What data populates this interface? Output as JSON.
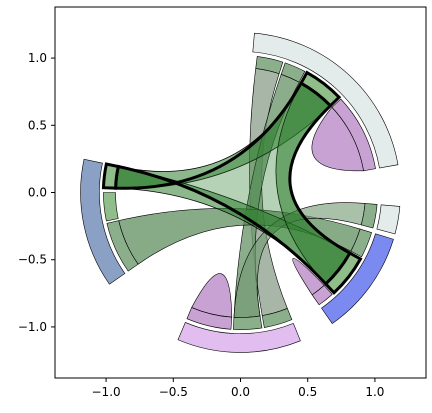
{
  "chart_data": {
    "type": "chord",
    "title": "",
    "xlabel": "",
    "ylabel": "",
    "xlim": [
      -1.38,
      1.38
    ],
    "ylim": [
      -1.38,
      1.38
    ],
    "grid": false,
    "x_ticks": [
      -1.0,
      -0.5,
      0.0,
      0.5,
      1.0
    ],
    "y_ticks": [
      1.0,
      0.5,
      0.0,
      -0.5,
      -1.0
    ],
    "x_tick_labels": [
      "−1.0",
      "−0.5",
      "0.0",
      "0.5",
      "1.0"
    ],
    "y_tick_labels": [
      "1.0",
      "0.5",
      "0.0",
      "−0.5",
      "−1.0"
    ],
    "inner_radius": 0.93,
    "inner_width": 0.09,
    "outer_radius": 1.05,
    "outer_width": 0.14,
    "nodes": [
      {
        "id": "A",
        "start_deg": 10,
        "end_deg": 85,
        "color": "#e3ecea"
      },
      {
        "id": "B",
        "start_deg": -15,
        "end_deg": -5,
        "color": "#e3ecea"
      },
      {
        "id": "C",
        "start_deg": -55,
        "end_deg": -17,
        "color": "#7b8af0"
      },
      {
        "id": "D",
        "start_deg": -113,
        "end_deg": -68,
        "color": "#e2bdf0"
      },
      {
        "id": "E",
        "start_deg": 168,
        "end_deg": 215,
        "color": "#8aa0c4"
      }
    ],
    "segments": [
      {
        "node": "A",
        "start_deg": 72,
        "end_deg": 83,
        "color": "#8aaf8a",
        "highlight": false
      },
      {
        "node": "A",
        "start_deg": 62,
        "end_deg": 71,
        "color": "#8aaf8a",
        "highlight": false
      },
      {
        "node": "A",
        "start_deg": 44,
        "end_deg": 61,
        "color": "#8fbe8b",
        "highlight": true
      },
      {
        "node": "A",
        "start_deg": 10,
        "end_deg": 43,
        "color": "#c9a2d4",
        "highlight": false
      },
      {
        "node": "B",
        "start_deg": -15,
        "end_deg": -5,
        "color": "#8aaf8a",
        "highlight": false
      },
      {
        "node": "C",
        "start_deg": -28,
        "end_deg": -17,
        "color": "#8aaf8a",
        "highlight": false
      },
      {
        "node": "C",
        "start_deg": -47,
        "end_deg": -29,
        "color": "#8fbe8b",
        "highlight": true
      },
      {
        "node": "C",
        "start_deg": -55,
        "end_deg": -48,
        "color": "#c9a2d4",
        "highlight": false
      },
      {
        "node": "D",
        "start_deg": -80,
        "end_deg": -68,
        "color": "#8aaf8a",
        "highlight": false
      },
      {
        "node": "D",
        "start_deg": -93,
        "end_deg": -81,
        "color": "#8aaf8a",
        "highlight": false
      },
      {
        "node": "D",
        "start_deg": -113,
        "end_deg": -94,
        "color": "#c9a2d4",
        "highlight": false
      },
      {
        "node": "E",
        "start_deg": 168,
        "end_deg": 178,
        "color": "#8fbe8b",
        "highlight": true
      },
      {
        "node": "E",
        "start_deg": 180,
        "end_deg": 192,
        "color": "#8fbe8b",
        "highlight": false
      },
      {
        "node": "E",
        "start_deg": 193,
        "end_deg": 215,
        "color": "#8aaf8a",
        "highlight": false
      }
    ],
    "chords": [
      {
        "from": [
          72,
          83
        ],
        "to": [
          -80,
          -68
        ],
        "color": "#8a9e8a",
        "opacity": 0.75,
        "highlight": false
      },
      {
        "from": [
          62,
          71
        ],
        "to": [
          -93,
          -81
        ],
        "color": "#6f986f",
        "opacity": 0.8,
        "highlight": false
      },
      {
        "from": [
          -28,
          -17
        ],
        "to": [
          193,
          215
        ],
        "color": "#5f8f5f",
        "opacity": 0.75,
        "highlight": false
      },
      {
        "from": [
          -15,
          -5
        ],
        "to": [
          -93,
          -81
        ],
        "color": "#6f986f",
        "opacity": 0.6,
        "highlight": false
      },
      {
        "from": [
          44,
          61
        ],
        "to": [
          168,
          178
        ],
        "color": "#2e7d2e",
        "opacity": 0.55,
        "highlight": true
      },
      {
        "from": [
          -47,
          -29
        ],
        "to": [
          168,
          178
        ],
        "color": "#2e7d2e",
        "opacity": 0.55,
        "highlight": true
      },
      {
        "from": [
          44,
          61
        ],
        "to": [
          -47,
          -29
        ],
        "color": "#2e7d2e",
        "opacity": 0.55,
        "highlight": true
      }
    ],
    "self_loops": [
      {
        "span": [
          10,
          43
        ],
        "color": "#c9a2d4"
      },
      {
        "span": [
          -55,
          -48
        ],
        "color": "#c9a2d4"
      },
      {
        "span": [
          -113,
          -94
        ],
        "color": "#c9a2d4"
      }
    ]
  }
}
